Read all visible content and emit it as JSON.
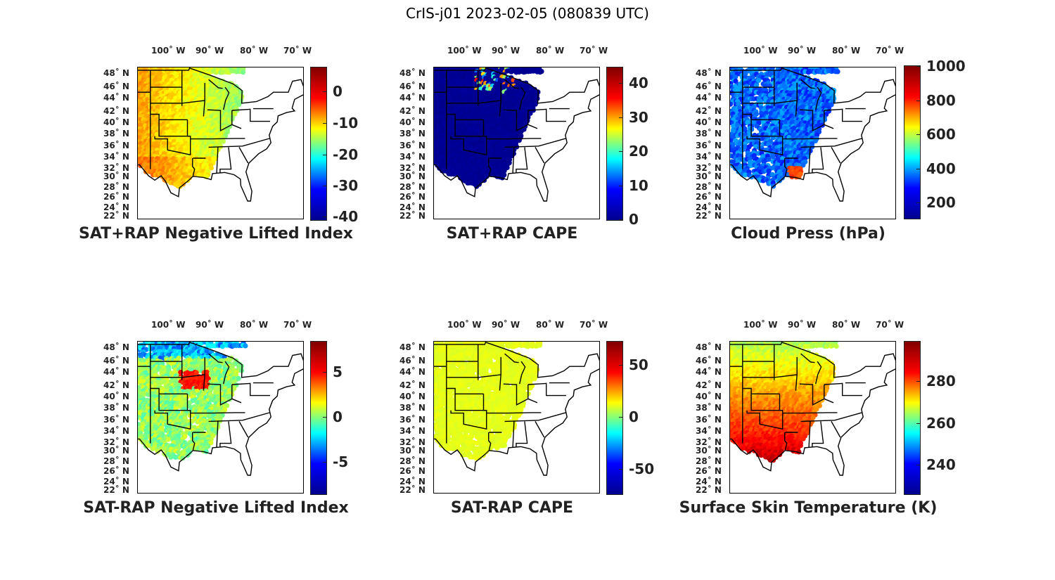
{
  "figure_title": "CrIS-j01 2023-02-05 (080839 UTC)",
  "lon_labels": [
    "100˚ W",
    "90˚ W",
    "80˚ W",
    "70˚ W"
  ],
  "lat_labels": [
    "48˚ N",
    "46˚ N",
    "44˚ N",
    "42˚ N",
    "40˚ N",
    "38˚ N",
    "36˚ N",
    "34˚ N",
    "32˚ N",
    "30˚ N",
    "28˚ N",
    "26˚ N",
    "24˚ N",
    "22˚ N"
  ],
  "colormap": "jet",
  "panels": [
    {
      "id": "sat-rap-neg-li-sum",
      "title": "SAT+RAP Negative Lifted Index",
      "colorbar": {
        "min": -42,
        "max": 7,
        "ticks": [
          "0",
          "-10",
          "-20",
          "-30",
          "-40"
        ],
        "tick_values": [
          0,
          -10,
          -20,
          -30,
          -40
        ]
      },
      "field": "neg_li_sum",
      "color_hex": "#f2c22a"
    },
    {
      "id": "sat-rap-cape-sum",
      "title": "SAT+RAP CAPE",
      "colorbar": {
        "min": 0,
        "max": 45,
        "ticks": [
          "40",
          "30",
          "20",
          "10",
          "0"
        ],
        "tick_values": [
          40,
          30,
          20,
          10,
          0
        ]
      },
      "field": "cape_sum",
      "color_hex": "#00088f"
    },
    {
      "id": "cloud-press",
      "title": "Cloud Press (hPa)",
      "colorbar": {
        "min": 100,
        "max": 1000,
        "ticks": [
          "1000",
          "800",
          "600",
          "400",
          "200"
        ],
        "tick_values": [
          1000,
          800,
          600,
          400,
          200
        ]
      },
      "field": "cloud_press",
      "color_hex": "#1040e0"
    },
    {
      "id": "sat-rap-neg-li-diff",
      "title": "SAT-RAP Negative Lifted Index",
      "colorbar": {
        "min": -8,
        "max": 8,
        "ticks": [
          "5",
          "0",
          "-5"
        ],
        "tick_values": [
          5,
          0,
          -5
        ]
      },
      "field": "neg_li_diff",
      "color_hex": "#5cd2a0"
    },
    {
      "id": "sat-rap-cape-diff",
      "title": "SAT-RAP CAPE",
      "colorbar": {
        "min": -75,
        "max": 75,
        "ticks": [
          "50",
          "0",
          "-50"
        ],
        "tick_values": [
          50,
          0,
          -50
        ]
      },
      "field": "cape_diff",
      "color_hex": "#88ee70"
    },
    {
      "id": "surface-skin-temp",
      "title": "Surface Skin Temperature (K)",
      "colorbar": {
        "min": 226,
        "max": 299,
        "ticks": [
          "280",
          "260",
          "240"
        ],
        "tick_values": [
          280,
          260,
          240
        ]
      },
      "field": "skin_temp",
      "color_hex": "#e8b020"
    }
  ]
}
